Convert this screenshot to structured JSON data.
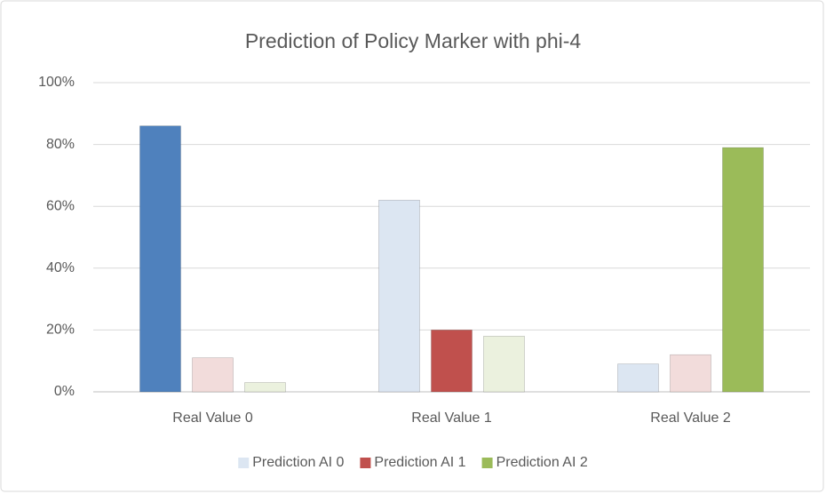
{
  "chart_data": {
    "type": "bar",
    "title": "Prediction of Policy Marker with phi-4",
    "categories": [
      "Real Value 0",
      "Real Value 1",
      "Real Value 2"
    ],
    "series": [
      {
        "name": "Prediction AI 0",
        "color": "#dce6f2",
        "colors": [
          "#4f81bd",
          "#dce6f2",
          "#dce6f2"
        ],
        "values": [
          86,
          62,
          9
        ]
      },
      {
        "name": "Prediction AI 1",
        "color": "#c0504d",
        "colors": [
          "#f2dcdb",
          "#c0504d",
          "#f2dcdb"
        ],
        "values": [
          11,
          20,
          12
        ]
      },
      {
        "name": "Prediction AI 2",
        "color": "#9bbb59",
        "colors": [
          "#ebf1de",
          "#ebf1de",
          "#9bbb59"
        ],
        "values": [
          3,
          18,
          79
        ]
      }
    ],
    "ylim": [
      0,
      100
    ],
    "yticks": [
      {
        "value": 0,
        "label": "0%"
      },
      {
        "value": 20,
        "label": "20%"
      },
      {
        "value": 40,
        "label": "40%"
      },
      {
        "value": 60,
        "label": "60%"
      },
      {
        "value": 80,
        "label": "80%"
      },
      {
        "value": 100,
        "label": "100%"
      }
    ],
    "grid": true,
    "legend": "bottom"
  }
}
